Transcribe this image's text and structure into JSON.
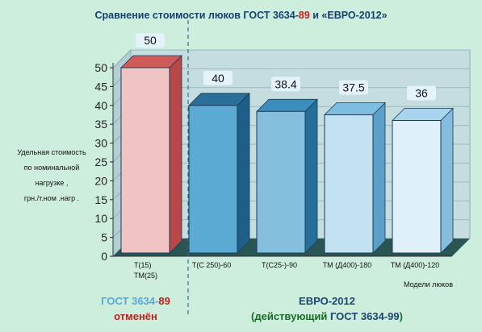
{
  "title": {
    "part1": "Сравнение  стоимости люков ГОСТ 3634-",
    "highlight": "89",
    "part2": " и «ЕВРО-2012»"
  },
  "groups": [
    {
      "line1_part1": "ГОСТ 3634-",
      "line1_highlight": "89",
      "line2": "отменён"
    },
    {
      "line1": "ЕВРО-2012",
      "line2_part1": "(действующий ",
      "line2_highlight": "ГОСТ 3634-99",
      "line2_part2": ")"
    }
  ],
  "colors": {
    "background": "#cdeedd",
    "wall": "#c6dde0",
    "floor": "#2a5552",
    "value_box": "#e4f2fa",
    "divider": "#3a6a8a"
  },
  "chart_data": {
    "type": "bar",
    "title": "Сравнение  стоимости люков ГОСТ 3634-89 и «ЕВРО-2012»",
    "ylabel_lines": [
      "Удельная   стоимость",
      "по  номинальной",
      "нагрузке  ,",
      "грн./т.ном .нагр ."
    ],
    "xlabel": "Модели  люков",
    "ylim": [
      0,
      50
    ],
    "yticks": [
      0,
      5,
      10,
      15,
      20,
      25,
      30,
      35,
      40,
      45,
      50
    ],
    "grid": true,
    "categories": [
      [
        "Т(15)",
        "ТМ(25)"
      ],
      [
        "Т(С 250)-60"
      ],
      [
        "Т(С25-)-90"
      ],
      [
        "ТМ (Д400)-180"
      ],
      [
        "ТМ (Д400)-120"
      ]
    ],
    "values": [
      50,
      40,
      38.4,
      37.5,
      36
    ],
    "value_labels": [
      "50",
      "40",
      "38.4",
      "37.5",
      "36"
    ],
    "bar_colors": [
      {
        "front": "#f0c4c4",
        "side": "#b84848",
        "top": "#cf5a5a"
      },
      {
        "front": "#5aaad4",
        "side": "#1e5f8a",
        "top": "#2a6f9a"
      },
      {
        "front": "#84c0de",
        "side": "#256e98",
        "top": "#3b8dbd"
      },
      {
        "front": "#c2e2f2",
        "side": "#5c9fc8",
        "top": "#7dbde0"
      },
      {
        "front": "#e0f0fa",
        "side": "#86bcde",
        "top": "#a9d4ee"
      }
    ]
  }
}
